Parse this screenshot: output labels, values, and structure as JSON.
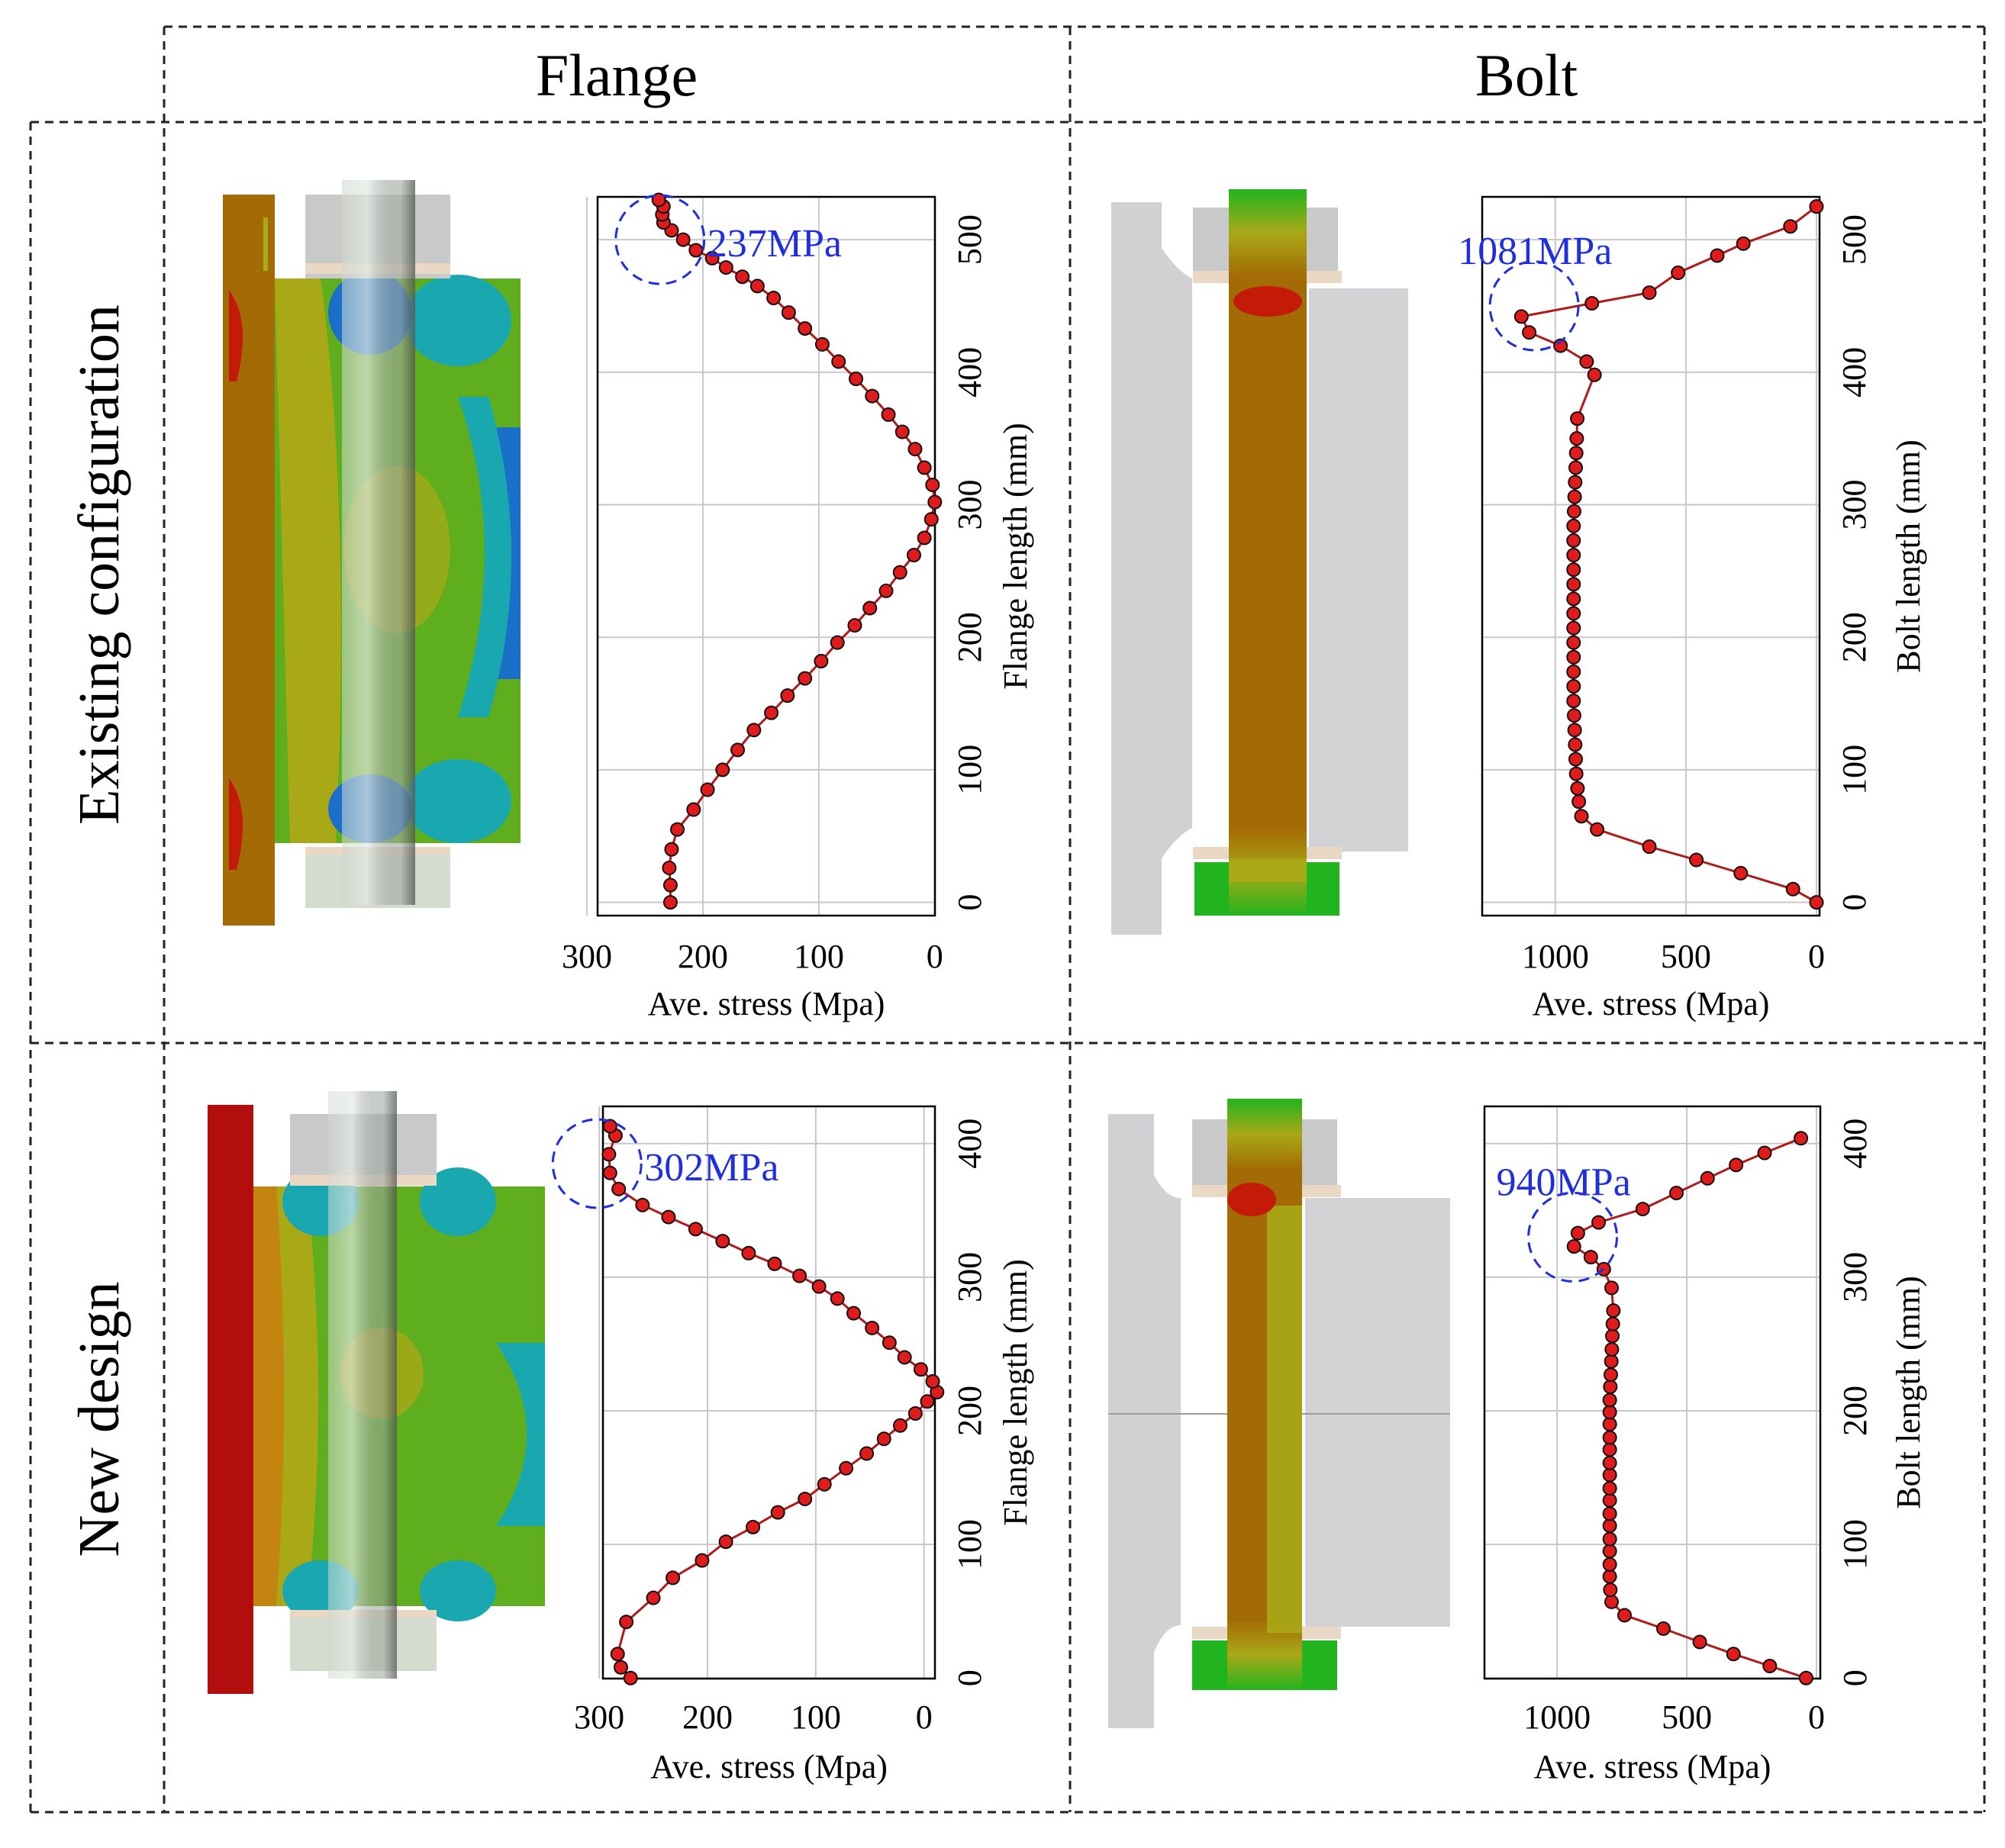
{
  "headers": {
    "columns": [
      "Flange",
      "Bolt"
    ],
    "rows": [
      "Existing configuration",
      "New design"
    ]
  },
  "colors": {
    "series_line": "#b21a1a",
    "marker_fill": "#e01b1b",
    "annotation": "#1f2fe0",
    "grid": "#c8c8c8",
    "frame": "#000000"
  },
  "chart_data": [
    {
      "name": "flange-existing",
      "type": "scatter",
      "row": "Existing configuration",
      "column": "Flange",
      "xlabel": "Ave. stress (Mpa)",
      "ylabel": "Flange length (mm)",
      "xlim": [
        300,
        -10
      ],
      "ylim": [
        -10,
        530
      ],
      "xticks": [
        300,
        200,
        100,
        0
      ],
      "yticks": [
        0,
        100,
        200,
        300,
        400,
        500
      ],
      "grid": true,
      "annotation": {
        "text": "237MPa",
        "x": 237,
        "y": 500
      },
      "series": [
        {
          "name": "Ave. stress",
          "x": [
            228,
            228,
            229,
            227,
            222,
            208,
            196,
            183,
            170,
            156,
            141,
            127,
            112,
            98,
            84,
            69,
            56,
            42,
            30,
            18,
            9,
            3,
            0,
            2,
            9,
            17,
            28,
            40,
            54,
            68,
            83,
            97,
            112,
            126,
            139,
            153,
            166,
            180,
            192,
            206,
            217,
            227,
            234,
            235,
            234,
            238
          ],
          "y": [
            0,
            13,
            26,
            40,
            55,
            70,
            85,
            100,
            115,
            130,
            143,
            156,
            169,
            182,
            196,
            209,
            222,
            235,
            249,
            262,
            275,
            289,
            302,
            315,
            328,
            342,
            355,
            368,
            382,
            395,
            408,
            421,
            433,
            445,
            456,
            465,
            472,
            479,
            486,
            492,
            500,
            507,
            513,
            519,
            525,
            530
          ]
        }
      ]
    },
    {
      "name": "bolt-existing",
      "type": "scatter",
      "row": "Existing configuration",
      "column": "Bolt",
      "xlabel": "Ave. stress (Mpa)",
      "ylabel": "Bolt length (mm)",
      "xlim": [
        1280,
        0
      ],
      "ylim": [
        -10,
        530
      ],
      "xticks": [
        1000,
        500,
        0
      ],
      "yticks": [
        0,
        100,
        200,
        300,
        400,
        500
      ],
      "grid": true,
      "annotation": {
        "text": "1081MPa",
        "x": 1081,
        "y": 450
      },
      "series": [
        {
          "name": "Ave. stress",
          "x": [
            0,
            90,
            290,
            460,
            640,
            840,
            900,
            910,
            915,
            920,
            922,
            924,
            926,
            928,
            930,
            930,
            930,
            930,
            930,
            930,
            930,
            930,
            930,
            930,
            930,
            930,
            930,
            928,
            926,
            924,
            922,
            920,
            918,
            916,
            850,
            880,
            980,
            1100,
            1130,
            860,
            640,
            530,
            380,
            280,
            100,
            0
          ],
          "y": [
            0,
            10,
            22,
            32,
            42,
            55,
            65,
            76,
            86,
            97,
            108,
            119,
            130,
            141,
            152,
            163,
            174,
            185,
            196,
            207,
            218,
            229,
            240,
            251,
            262,
            273,
            284,
            295,
            306,
            317,
            328,
            339,
            350,
            365,
            398,
            408,
            420,
            430,
            442,
            452,
            460,
            475,
            488,
            497,
            510,
            525
          ]
        }
      ]
    },
    {
      "name": "flange-new",
      "type": "scatter",
      "row": "New design",
      "column": "Flange",
      "xlabel": "Ave. stress (Mpa)",
      "ylabel": "Flange length (mm)",
      "xlim": [
        305,
        -15
      ],
      "ylim": [
        -5,
        425
      ],
      "xticks": [
        300,
        200,
        100,
        0
      ],
      "yticks": [
        0,
        100,
        200,
        300,
        400
      ],
      "grid": true,
      "annotation": {
        "text": "302MPa",
        "x": 302,
        "y": 385
      },
      "series": [
        {
          "name": "Ave. stress",
          "x": [
            271,
            280,
            283,
            275,
            250,
            232,
            205,
            183,
            158,
            135,
            110,
            92,
            72,
            53,
            37,
            22,
            8,
            -3,
            -12,
            -8,
            3,
            18,
            32,
            48,
            65,
            80,
            97,
            115,
            138,
            162,
            186,
            211,
            236,
            260,
            282,
            290,
            291,
            285,
            290
          ],
          "y": [
            0,
            8,
            18,
            42,
            60,
            75,
            88,
            102,
            113,
            124,
            134,
            145,
            157,
            168,
            179,
            189,
            198,
            207,
            214,
            222,
            231,
            240,
            251,
            262,
            273,
            284,
            293,
            301,
            310,
            318,
            327,
            336,
            345,
            354,
            366,
            378,
            392,
            406,
            413
          ]
        }
      ]
    },
    {
      "name": "bolt-new",
      "type": "scatter",
      "row": "New design",
      "column": "Bolt",
      "xlabel": "Ave. stress (Mpa)",
      "ylabel": "Bolt length (mm)",
      "xlim": [
        1280,
        0
      ],
      "ylim": [
        -5,
        425
      ],
      "xticks": [
        1000,
        500,
        0
      ],
      "yticks": [
        0,
        100,
        200,
        300,
        400
      ],
      "grid": true,
      "annotation": {
        "text": "940MPa",
        "x": 940,
        "y": 330
      },
      "series": [
        {
          "name": "Ave. stress",
          "x": [
            40,
            180,
            320,
            450,
            590,
            740,
            790,
            795,
            797,
            797,
            797,
            797,
            797,
            797,
            797,
            797,
            797,
            797,
            797,
            797,
            797,
            797,
            797,
            795,
            793,
            791,
            789,
            787,
            785,
            783,
            790,
            820,
            870,
            935,
            920,
            840,
            670,
            540,
            420,
            310,
            200,
            60
          ],
          "y": [
            0,
            9,
            18,
            27,
            37,
            47,
            57,
            66,
            76,
            85,
            95,
            104,
            114,
            123,
            133,
            142,
            152,
            161,
            171,
            180,
            190,
            199,
            208,
            218,
            227,
            237,
            246,
            256,
            265,
            275,
            292,
            306,
            315,
            323,
            333,
            341,
            351,
            363,
            374,
            384,
            393,
            404
          ]
        }
      ]
    }
  ]
}
